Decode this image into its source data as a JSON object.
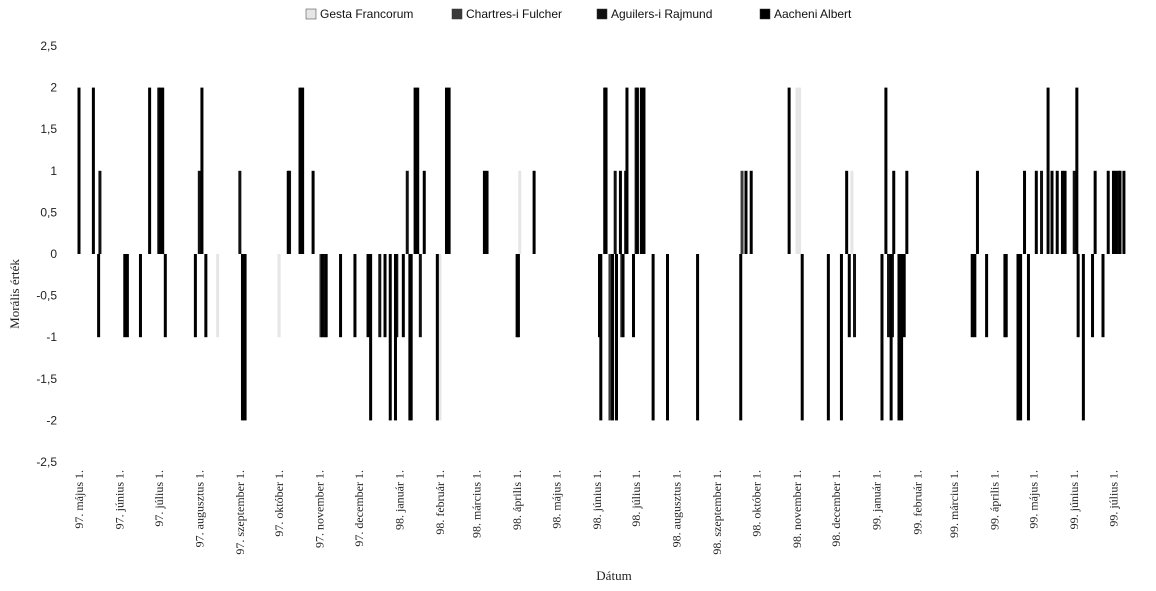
{
  "chart_data": {
    "type": "bar",
    "title": "",
    "xlabel": "Dátum",
    "ylabel": "Morális érték",
    "ylim": [
      -2.5,
      2.5
    ],
    "yticks": [
      "2,5",
      "2",
      "1,5",
      "1",
      "0,5",
      "0",
      "-0,5",
      "-1",
      "-1,5",
      "-2",
      "-2,5"
    ],
    "grid": false,
    "legend_position": "top",
    "date_range": [
      "1097-05-01",
      "1099-08-01"
    ],
    "tick_labels": [
      {
        "label": "97. május 1.",
        "date": "1097-05-01"
      },
      {
        "label": "97. június 1.",
        "date": "1097-06-01"
      },
      {
        "label": "97. július 1.",
        "date": "1097-07-01"
      },
      {
        "label": "97. augusztus 1.",
        "date": "1097-08-01"
      },
      {
        "label": "97. szeptember 1.",
        "date": "1097-09-01"
      },
      {
        "label": "97. október 1.",
        "date": "1097-10-01"
      },
      {
        "label": "97. november 1.",
        "date": "1097-11-01"
      },
      {
        "label": "97. december 1.",
        "date": "1097-12-01"
      },
      {
        "label": "98. január 1.",
        "date": "1098-01-01"
      },
      {
        "label": "98. február 1.",
        "date": "1098-02-01"
      },
      {
        "label": "98. március 1.",
        "date": "1098-03-01"
      },
      {
        "label": "98. április 1.",
        "date": "1098-04-01"
      },
      {
        "label": "98. május 1.",
        "date": "1098-05-01"
      },
      {
        "label": "98. június 1.",
        "date": "1098-06-01"
      },
      {
        "label": "98. július 1.",
        "date": "1098-07-01"
      },
      {
        "label": "98. augusztus 1.",
        "date": "1098-08-01"
      },
      {
        "label": "98. szeptember 1.",
        "date": "1098-09-01"
      },
      {
        "label": "98. október 1.",
        "date": "1098-10-01"
      },
      {
        "label": "98. november 1.",
        "date": "1098-11-01"
      },
      {
        "label": "98. december 1.",
        "date": "1098-12-01"
      },
      {
        "label": "99. január 1.",
        "date": "1099-01-01"
      },
      {
        "label": "99. február 1.",
        "date": "1099-02-01"
      },
      {
        "label": "99. március 1.",
        "date": "1099-03-01"
      },
      {
        "label": "99. április 1.",
        "date": "1099-04-01"
      },
      {
        "label": "99. május 1.",
        "date": "1099-05-01"
      },
      {
        "label": "99. június 1.",
        "date": "1099-06-01"
      },
      {
        "label": "99. július 1.",
        "date": "1099-07-01"
      }
    ],
    "series": [
      {
        "name": "Gesta Francorum",
        "color": "#e6e6e6",
        "points": [
          {
            "x": "1097-08-15",
            "y": -1
          },
          {
            "x": "1097-10-01",
            "y": -1
          },
          {
            "x": "1098-02-01",
            "y": -2
          },
          {
            "x": "1098-04-03",
            "y": 1
          },
          {
            "x": "1098-11-01",
            "y": 2
          },
          {
            "x": "1098-11-03",
            "y": 2
          },
          {
            "x": "1098-12-13",
            "y": 1
          }
        ]
      },
      {
        "name": "Chartres-i Fulcher",
        "color": "#3a3a3a",
        "points": [
          {
            "x": "1097-11-02",
            "y": -1
          },
          {
            "x": "1098-06-11",
            "y": -2
          },
          {
            "x": "1098-06-20",
            "y": -1
          },
          {
            "x": "1098-09-20",
            "y": 1
          }
        ]
      },
      {
        "name": "Aguilers-i Rajmund",
        "color": "#111111",
        "points": [
          {
            "x": "1097-05-17",
            "y": 1
          },
          {
            "x": "1097-07-01",
            "y": 2
          },
          {
            "x": "1097-08-01",
            "y": 1
          },
          {
            "x": "1097-09-01",
            "y": 1
          },
          {
            "x": "1097-10-09",
            "y": 1
          },
          {
            "x": "1097-11-05",
            "y": -1
          },
          {
            "x": "1097-12-17",
            "y": -1
          },
          {
            "x": "1097-12-30",
            "y": -1
          },
          {
            "x": "1098-01-07",
            "y": 1
          },
          {
            "x": "1098-01-17",
            "y": -1
          },
          {
            "x": "1098-06-15",
            "y": 1
          },
          {
            "x": "1098-06-23",
            "y": 1
          },
          {
            "x": "1098-07-01",
            "y": 2
          },
          {
            "x": "1098-12-15",
            "y": -1
          },
          {
            "x": "1099-01-10",
            "y": -1
          },
          {
            "x": "1099-01-13",
            "y": -1
          },
          {
            "x": "1099-05-07",
            "y": 1
          },
          {
            "x": "1099-06-01",
            "y": 1
          },
          {
            "x": "1099-07-05",
            "y": 1
          }
        ]
      },
      {
        "name": "Aacheni Albert",
        "color": "#000000",
        "points": [
          {
            "x": "1097-05-01",
            "y": 2
          },
          {
            "x": "1097-05-12",
            "y": 2
          },
          {
            "x": "1097-05-16",
            "y": -1
          },
          {
            "x": "1097-06-05",
            "y": -1
          },
          {
            "x": "1097-06-07",
            "y": -1
          },
          {
            "x": "1097-06-17",
            "y": -1
          },
          {
            "x": "1097-06-24",
            "y": 2
          },
          {
            "x": "1097-07-02",
            "y": 2
          },
          {
            "x": "1097-07-04",
            "y": 2
          },
          {
            "x": "1097-07-06",
            "y": -1
          },
          {
            "x": "1097-07-29",
            "y": -1
          },
          {
            "x": "1097-08-03",
            "y": 2
          },
          {
            "x": "1097-08-06",
            "y": -1
          },
          {
            "x": "1097-09-03",
            "y": -2
          },
          {
            "x": "1097-09-05",
            "y": -2
          },
          {
            "x": "1097-10-08",
            "y": 1
          },
          {
            "x": "1097-10-17",
            "y": 2
          },
          {
            "x": "1097-10-19",
            "y": 2
          },
          {
            "x": "1097-10-27",
            "y": 1
          },
          {
            "x": "1097-11-03",
            "y": -1
          },
          {
            "x": "1097-11-06",
            "y": -1
          },
          {
            "x": "1097-11-17",
            "y": -1
          },
          {
            "x": "1097-11-28",
            "y": -1
          },
          {
            "x": "1097-12-08",
            "y": -1
          },
          {
            "x": "1097-12-10",
            "y": -2
          },
          {
            "x": "1097-12-21",
            "y": -1
          },
          {
            "x": "1097-12-25",
            "y": -2
          },
          {
            "x": "1097-12-29",
            "y": -2
          },
          {
            "x": "1098-01-04",
            "y": -1
          },
          {
            "x": "1098-01-09",
            "y": -2
          },
          {
            "x": "1098-01-10",
            "y": -2
          },
          {
            "x": "1098-01-13",
            "y": 2
          },
          {
            "x": "1098-01-15",
            "y": 2
          },
          {
            "x": "1098-01-20",
            "y": 1
          },
          {
            "x": "1098-01-30",
            "y": -2
          },
          {
            "x": "1098-02-06",
            "y": 2
          },
          {
            "x": "1098-02-08",
            "y": 2
          },
          {
            "x": "1098-03-07",
            "y": 1
          },
          {
            "x": "1098-03-09",
            "y": 1
          },
          {
            "x": "1098-04-01",
            "y": -1
          },
          {
            "x": "1098-04-02",
            "y": -1
          },
          {
            "x": "1098-04-14",
            "y": 1
          },
          {
            "x": "1098-06-03",
            "y": -1
          },
          {
            "x": "1098-06-04",
            "y": -2
          },
          {
            "x": "1098-06-07",
            "y": 2
          },
          {
            "x": "1098-06-08",
            "y": 2
          },
          {
            "x": "1098-06-13",
            "y": -2
          },
          {
            "x": "1098-06-16",
            "y": -2
          },
          {
            "x": "1098-06-19",
            "y": 1
          },
          {
            "x": "1098-06-21",
            "y": -1
          },
          {
            "x": "1098-06-24",
            "y": 2
          },
          {
            "x": "1098-06-29",
            "y": -1
          },
          {
            "x": "1098-07-02",
            "y": 2
          },
          {
            "x": "1098-07-05",
            "y": 2
          },
          {
            "x": "1098-07-07",
            "y": 2
          },
          {
            "x": "1098-07-14",
            "y": -2
          },
          {
            "x": "1098-07-25",
            "y": -2
          },
          {
            "x": "1098-08-17",
            "y": -2
          },
          {
            "x": "1098-09-19",
            "y": -2
          },
          {
            "x": "1098-09-23",
            "y": 1
          },
          {
            "x": "1098-09-27",
            "y": 1
          },
          {
            "x": "1098-10-26",
            "y": 2
          },
          {
            "x": "1098-11-05",
            "y": -2
          },
          {
            "x": "1098-11-25",
            "y": -2
          },
          {
            "x": "1098-12-05",
            "y": -2
          },
          {
            "x": "1098-12-09",
            "y": 1
          },
          {
            "x": "1098-12-11",
            "y": -1
          },
          {
            "x": "1099-01-05",
            "y": -2
          },
          {
            "x": "1099-01-08",
            "y": 2
          },
          {
            "x": "1099-01-12",
            "y": -2
          },
          {
            "x": "1099-01-14",
            "y": 1
          },
          {
            "x": "1099-01-18",
            "y": -2
          },
          {
            "x": "1099-01-20",
            "y": -2
          },
          {
            "x": "1099-01-22",
            "y": -1
          },
          {
            "x": "1099-01-24",
            "y": 1
          },
          {
            "x": "1099-03-15",
            "y": -1
          },
          {
            "x": "1099-03-17",
            "y": -1
          },
          {
            "x": "1099-03-19",
            "y": 1
          },
          {
            "x": "1099-03-26",
            "y": -1
          },
          {
            "x": "1099-04-09",
            "y": -1
          },
          {
            "x": "1099-04-10",
            "y": -1
          },
          {
            "x": "1099-04-19",
            "y": -2
          },
          {
            "x": "1099-04-21",
            "y": -2
          },
          {
            "x": "1099-04-24",
            "y": 1
          },
          {
            "x": "1099-04-27",
            "y": -2
          },
          {
            "x": "1099-05-03",
            "y": 1
          },
          {
            "x": "1099-05-12",
            "y": 2
          },
          {
            "x": "1099-05-15",
            "y": 1
          },
          {
            "x": "1099-05-19",
            "y": 1
          },
          {
            "x": "1099-05-23",
            "y": 1
          },
          {
            "x": "1099-05-25",
            "y": 1
          },
          {
            "x": "1099-06-03",
            "y": 2
          },
          {
            "x": "1099-06-04",
            "y": -1
          },
          {
            "x": "1099-06-08",
            "y": -2
          },
          {
            "x": "1099-06-15",
            "y": -1
          },
          {
            "x": "1099-06-17",
            "y": 1
          },
          {
            "x": "1099-06-23",
            "y": -1
          },
          {
            "x": "1099-06-27",
            "y": 1
          },
          {
            "x": "1099-07-01",
            "y": 1
          },
          {
            "x": "1099-07-03",
            "y": 1
          },
          {
            "x": "1099-07-06",
            "y": 1
          },
          {
            "x": "1099-07-09",
            "y": 1
          }
        ]
      }
    ]
  }
}
